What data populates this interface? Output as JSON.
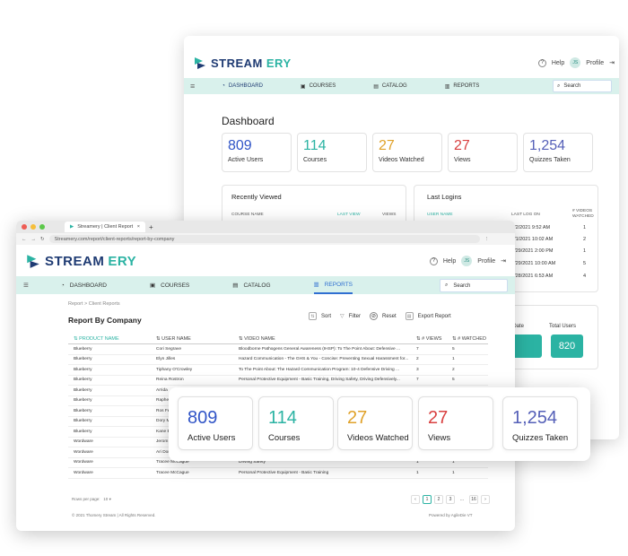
{
  "brand": {
    "part1": "STREAM",
    "part2": "ERY"
  },
  "header": {
    "help": "Help",
    "profile": "Profile",
    "avatar_initials": "JS"
  },
  "nav": [
    {
      "label": "DASHBOARD",
      "icon": "gauge-icon"
    },
    {
      "label": "COURSES",
      "icon": "book-icon"
    },
    {
      "label": "CATALOG",
      "icon": "catalog-icon"
    },
    {
      "label": "REPORTS",
      "icon": "bar-chart-icon"
    }
  ],
  "search_label": "Search",
  "dashboard": {
    "title": "Dashboard",
    "stats": [
      {
        "value": "809",
        "label": "Active Users",
        "color": "#3155c7"
      },
      {
        "value": "114",
        "label": "Courses",
        "color": "#2bb3a3"
      },
      {
        "value": "27",
        "label": "Videos Watched",
        "color": "#e0a22a"
      },
      {
        "value": "27",
        "label": "Views",
        "color": "#d94040"
      },
      {
        "value": "1,254",
        "label": "Quizzes Taken",
        "color": "#5560b8"
      }
    ],
    "recently_viewed": {
      "title": "Recently Viewed",
      "col1": "COURSE NAME",
      "col2": "LAST VIEW",
      "col3": "VIEWS"
    },
    "last_logins": {
      "title": "Last Logins",
      "col1": "USER NAME",
      "col2": "LAST LOG ON",
      "col3a": "# VIDEOS",
      "col3b": "WATCHED",
      "rows": [
        {
          "date": "3/2/2021 9:52 AM",
          "count": "1"
        },
        {
          "date": "3/1/2021 10:02 AM",
          "count": "2"
        },
        {
          "date": "2/29/2021 2:00 PM",
          "count": "1"
        },
        {
          "date": "2/29/2021 10:00 AM",
          "count": "5"
        },
        {
          "date": "1/28/2021 6:53 AM",
          "count": "4"
        }
      ]
    },
    "start_date_label": "t Date",
    "total_users_label": "Total Users",
    "total_users_value": "820"
  },
  "browser": {
    "tab_title": "Streamery | Client Report",
    "url": "Streamery.com/report/client-reports/report-by-company"
  },
  "report": {
    "breadcrumb": "Report  >  Client Reports",
    "title": "Report By Company",
    "actions": {
      "sort": "Sort",
      "filter": "Filter",
      "reset": "Reset",
      "export": "Export Report"
    },
    "columns": [
      "PRODUCT NAME",
      "USER NAME",
      "VIDEO NAME",
      "# VIEWS",
      "# WATCHED"
    ],
    "rows": [
      [
        "Blueberry",
        "Cori Segrave",
        "Bloodborne Pathogens General Awareness (IHSP): To The Point About: Defensive ...",
        "7",
        "5"
      ],
      [
        "Blueberry",
        "Elyn Jilles",
        "Hazard Communication - The GHS & You - Concise: Preventing Sexual Harassment for...",
        "2",
        "1"
      ],
      [
        "Blueberry",
        "Tiphany O'Crowley",
        "To The Point About: The Hazard Communication Program: 10-4 Defensive Driving ...",
        "3",
        "2"
      ],
      [
        "Blueberry",
        "Reina Rostron",
        "Personal Protective Equipment - Basic Training, Driving Safety, Driving Defensively...",
        "7",
        "5"
      ],
      [
        "Blueberry",
        "Arrida",
        "",
        "",
        ""
      ],
      [
        "Blueberry",
        "Raphe",
        "",
        "",
        ""
      ],
      [
        "Blueberry",
        "Ros Fe",
        "",
        "",
        ""
      ],
      [
        "Blueberry",
        "Dory M",
        "",
        "",
        ""
      ],
      [
        "Blueberry",
        "Kane B",
        "",
        "",
        ""
      ],
      [
        "Wordware",
        "Jerom",
        "",
        "",
        ""
      ],
      [
        "Wordware",
        "Ari Donnellan",
        "",
        "",
        ""
      ],
      [
        "Wordware",
        "Tracee McCague",
        "Driving Safety",
        "1",
        "1"
      ],
      [
        "Wordware",
        "Tracee McCague",
        "Personal Protective Equipment - Basic Training",
        "1",
        "1"
      ]
    ],
    "rows_per_page_label": "Rows per page:",
    "rows_per_page_value": "10",
    "pages": [
      "1",
      "2",
      "3",
      "...",
      "16"
    ],
    "copyright": "© 2021 Thomery Stream | All Rights Reserved.",
    "powered_by": "Powered by AgileDie VT"
  },
  "overlay_stats": [
    {
      "value": "809",
      "label": "Active Users",
      "color": "#3155c7"
    },
    {
      "value": "114",
      "label": "Courses",
      "color": "#2bb3a3"
    },
    {
      "value": "27",
      "label": "Videos Watched",
      "color": "#e0a22a"
    },
    {
      "value": "27",
      "label": "Views",
      "color": "#d94040"
    },
    {
      "value": "1,254",
      "label": "Quizzes Taken",
      "color": "#5560b8"
    }
  ]
}
